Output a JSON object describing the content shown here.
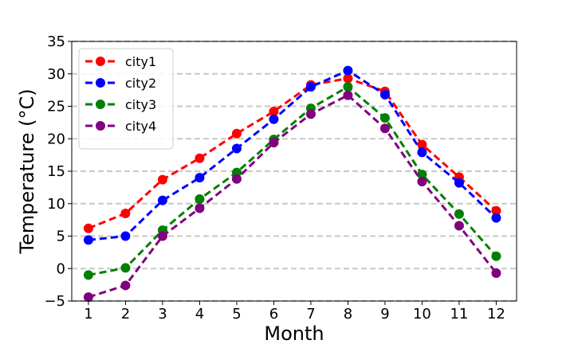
{
  "chart_data": {
    "type": "line",
    "xlabel": "Month",
    "ylabel": "Temperature (°C)",
    "x": [
      1,
      2,
      3,
      4,
      5,
      6,
      7,
      8,
      9,
      10,
      11,
      12
    ],
    "xticks": [
      "1",
      "2",
      "3",
      "4",
      "5",
      "6",
      "7",
      "8",
      "9",
      "10",
      "11",
      "12"
    ],
    "yticks": [
      -5,
      0,
      5,
      10,
      15,
      20,
      25,
      30,
      35
    ],
    "ylim": [
      -5,
      35
    ],
    "xlim": [
      0.55,
      12.55
    ],
    "grid": "horizontal dashed",
    "legend_position": "upper-left",
    "line_style": "dashed with circle markers",
    "series": [
      {
        "name": "city1",
        "color": "#ff0000",
        "values": [
          6.2,
          8.5,
          13.7,
          17.0,
          20.8,
          24.2,
          28.3,
          29.3,
          27.3,
          19.1,
          14.1,
          8.9
        ]
      },
      {
        "name": "city2",
        "color": "#0000ff",
        "values": [
          4.4,
          5.0,
          10.5,
          14.0,
          18.5,
          23.0,
          28.0,
          30.5,
          26.8,
          17.9,
          13.2,
          7.8
        ]
      },
      {
        "name": "city3",
        "color": "#008000",
        "values": [
          -1.0,
          0.1,
          5.9,
          10.7,
          14.8,
          19.9,
          24.7,
          28.0,
          23.2,
          14.5,
          8.4,
          1.9
        ]
      },
      {
        "name": "city4",
        "color": "#800080",
        "values": [
          -4.4,
          -2.6,
          5.0,
          9.3,
          13.8,
          19.4,
          23.8,
          26.7,
          21.6,
          13.4,
          6.6,
          -0.7
        ]
      }
    ]
  }
}
